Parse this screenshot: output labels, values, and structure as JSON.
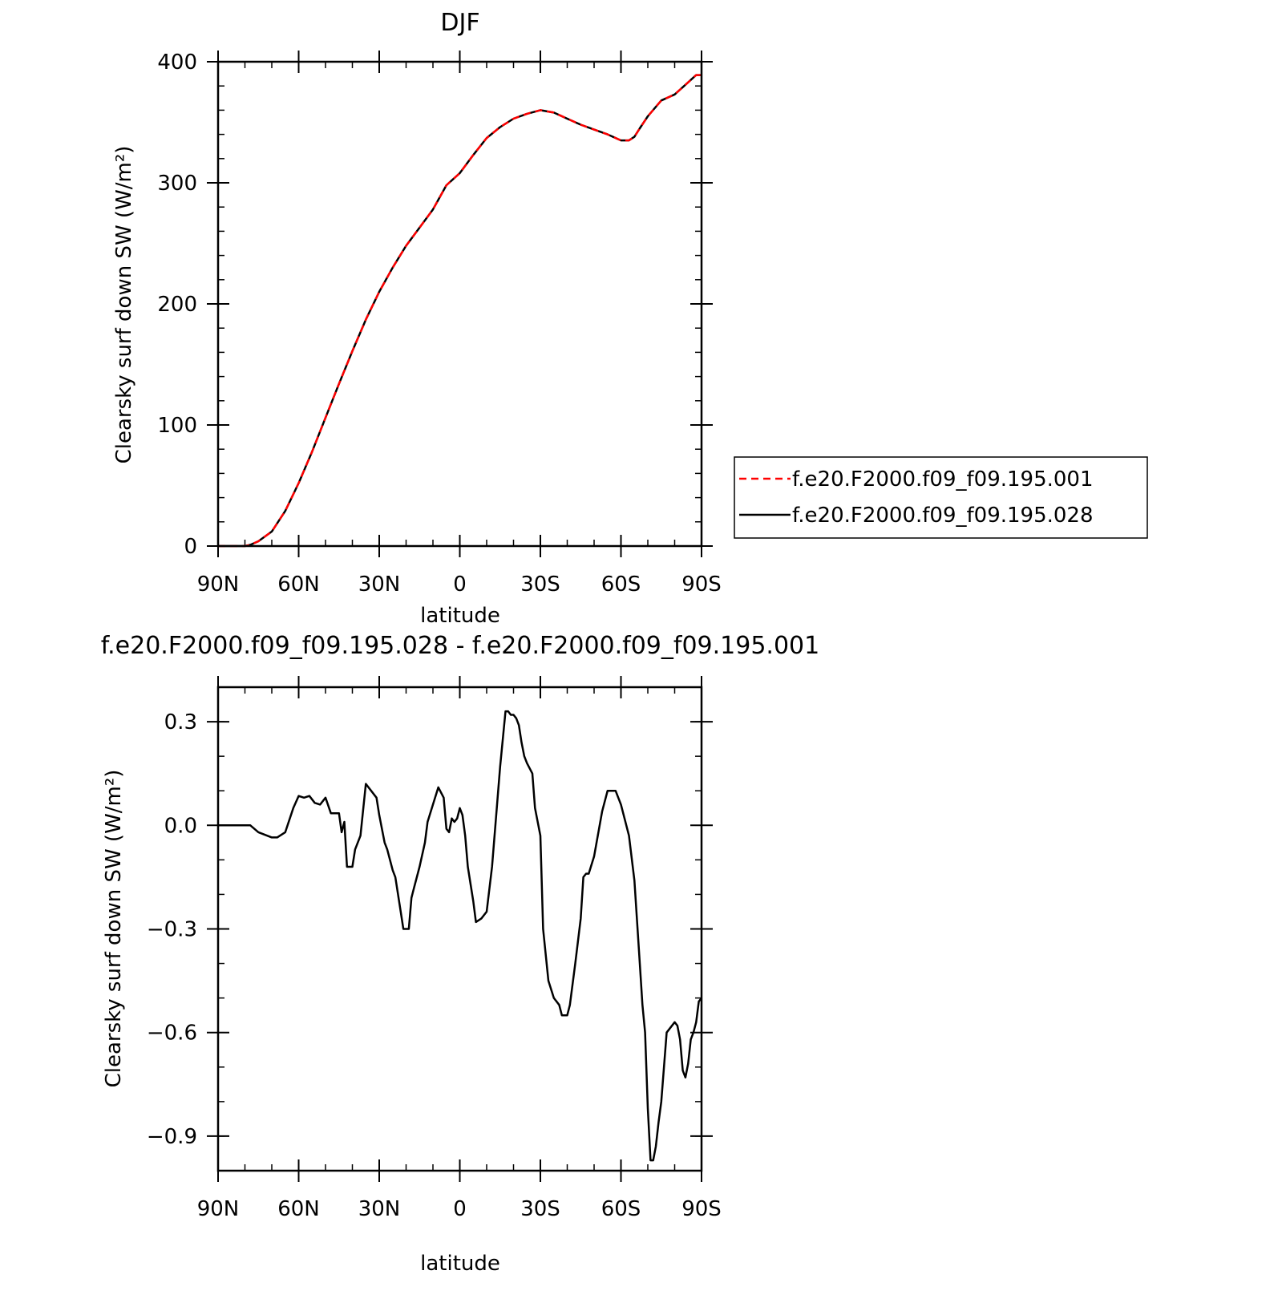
{
  "chart_data": [
    {
      "type": "line",
      "title": "DJF",
      "xlabel": "latitude",
      "ylabel": "Clearsky surf down SW (W/m²)",
      "xlim": [
        90,
        -90
      ],
      "ylim": [
        0,
        400
      ],
      "x_ticks": [
        {
          "value": 90,
          "label": "90N"
        },
        {
          "value": 60,
          "label": "60N"
        },
        {
          "value": 30,
          "label": "30N"
        },
        {
          "value": 0,
          "label": "0"
        },
        {
          "value": -30,
          "label": "30S"
        },
        {
          "value": -60,
          "label": "60S"
        },
        {
          "value": -90,
          "label": "90S"
        }
      ],
      "y_ticks": [
        {
          "value": 0,
          "label": "0"
        },
        {
          "value": 100,
          "label": "100"
        },
        {
          "value": 200,
          "label": "200"
        },
        {
          "value": 300,
          "label": "300"
        },
        {
          "value": 400,
          "label": "400"
        }
      ],
      "legend": {
        "placement": "right",
        "entries": [
          {
            "label": "f.e20.F2000.f09_f09.195.001",
            "color": "#ff0000",
            "dash": "dashed"
          },
          {
            "label": "f.e20.F2000.f09_f09.195.028",
            "color": "#000000",
            "dash": "solid"
          }
        ]
      },
      "series": [
        {
          "name": "f.e20.F2000.f09_f09.195.001",
          "color": "#ff0000",
          "dash": "dashed",
          "x": [
            90,
            85,
            80,
            78,
            75,
            70,
            65,
            60,
            55,
            50,
            45,
            40,
            35,
            30,
            25,
            20,
            15,
            10,
            5,
            0,
            -5,
            -10,
            -15,
            -20,
            -25,
            -30,
            -35,
            -40,
            -45,
            -50,
            -55,
            -60,
            -63,
            -65,
            -67,
            -70,
            -75,
            -80,
            -85,
            -88,
            -90
          ],
          "y": [
            0,
            0,
            0,
            1,
            4,
            12,
            29,
            52,
            78,
            106,
            134,
            161,
            187,
            210,
            230,
            248,
            263,
            278,
            298,
            308,
            323,
            337,
            346,
            353,
            357,
            360,
            358,
            353,
            348,
            344,
            340,
            335,
            335,
            338,
            345,
            355,
            368,
            373,
            383,
            389,
            389
          ]
        },
        {
          "name": "f.e20.F2000.f09_f09.195.028",
          "color": "#000000",
          "dash": "solid",
          "x": [
            90,
            85,
            80,
            78,
            75,
            70,
            65,
            60,
            55,
            50,
            45,
            40,
            35,
            30,
            25,
            20,
            15,
            10,
            5,
            0,
            -5,
            -10,
            -15,
            -20,
            -25,
            -30,
            -35,
            -40,
            -45,
            -50,
            -55,
            -60,
            -63,
            -65,
            -67,
            -70,
            -75,
            -80,
            -85,
            -88,
            -90
          ],
          "y": [
            0,
            0,
            0,
            1,
            4,
            12,
            29,
            52,
            78,
            106,
            134,
            161,
            187,
            210,
            230,
            248,
            263,
            278,
            298,
            308,
            323,
            337,
            346,
            353,
            357,
            360,
            358,
            353,
            348,
            344,
            340,
            335,
            335,
            338,
            345,
            355,
            368,
            373,
            383,
            389,
            389
          ]
        }
      ]
    },
    {
      "type": "line",
      "title": "f.e20.F2000.f09_f09.195.028 - f.e20.F2000.f09_f09.195.001",
      "xlabel": "latitude",
      "ylabel": "Clearsky surf down SW (W/m²)",
      "xlim": [
        90,
        -90
      ],
      "ylim": [
        -1.0,
        0.4
      ],
      "x_ticks": [
        {
          "value": 90,
          "label": "90N"
        },
        {
          "value": 60,
          "label": "60N"
        },
        {
          "value": 30,
          "label": "30N"
        },
        {
          "value": 0,
          "label": "0"
        },
        {
          "value": -30,
          "label": "30S"
        },
        {
          "value": -60,
          "label": "60S"
        },
        {
          "value": -90,
          "label": "90S"
        }
      ],
      "y_ticks": [
        {
          "value": 0.3,
          "label": "0.3"
        },
        {
          "value": 0.0,
          "label": "0.0"
        },
        {
          "value": -0.3,
          "label": "−0.3"
        },
        {
          "value": -0.6,
          "label": "−0.6"
        },
        {
          "value": -0.9,
          "label": "−0.9"
        }
      ],
      "series": [
        {
          "color": "#000000",
          "dash": "solid",
          "x": [
            90,
            78,
            75,
            70,
            68,
            65,
            62,
            60,
            58,
            56,
            54,
            52,
            50,
            48,
            45,
            44,
            43,
            42,
            40,
            39,
            37,
            35,
            31,
            30,
            28,
            27,
            25,
            24,
            22,
            21,
            19,
            18,
            17,
            15,
            13,
            12,
            10,
            8,
            6,
            5,
            4,
            3,
            2,
            1,
            0,
            -1,
            -2,
            -3,
            -5,
            -6,
            -8,
            -10,
            -12,
            -15,
            -17,
            -18,
            -19,
            -20,
            -21,
            -22,
            -23,
            -24,
            -25,
            -27,
            -28,
            -30,
            -31,
            -33,
            -35,
            -37,
            -38,
            -40,
            -41,
            -43,
            -45,
            -46,
            -47,
            -48,
            -50,
            -53,
            -55,
            -56,
            -57,
            -58,
            -60,
            -63,
            -65,
            -67,
            -68,
            -69,
            -70,
            -71,
            -72,
            -73,
            -74,
            -75,
            -77,
            -80,
            -81,
            -82,
            -83,
            -84,
            -85,
            -86,
            -87,
            -88,
            -89,
            -90
          ],
          "y": [
            0,
            0,
            -0.02,
            -0.035,
            -0.035,
            -0.02,
            0.05,
            0.085,
            0.08,
            0.085,
            0.065,
            0.06,
            0.08,
            0.035,
            0.035,
            -0.02,
            0.01,
            -0.12,
            -0.12,
            -0.07,
            -0.03,
            0.12,
            0.08,
            0.03,
            -0.05,
            -0.07,
            -0.13,
            -0.15,
            -0.25,
            -0.3,
            -0.3,
            -0.21,
            -0.18,
            -0.12,
            -0.05,
            0.01,
            0.06,
            0.11,
            0.08,
            -0.01,
            -0.02,
            0.02,
            0.01,
            0.02,
            0.05,
            0.03,
            -0.03,
            -0.12,
            -0.22,
            -0.28,
            -0.27,
            -0.25,
            -0.12,
            0.17,
            0.33,
            0.33,
            0.32,
            0.32,
            0.31,
            0.29,
            0.24,
            0.2,
            0.18,
            0.15,
            0.05,
            -0.03,
            -0.3,
            -0.45,
            -0.5,
            -0.52,
            -0.55,
            -0.55,
            -0.52,
            -0.4,
            -0.27,
            -0.15,
            -0.14,
            -0.14,
            -0.09,
            0.04,
            0.1,
            0.1,
            0.1,
            0.1,
            0.06,
            -0.03,
            -0.16,
            -0.4,
            -0.52,
            -0.6,
            -0.82,
            -0.97,
            -0.97,
            -0.93,
            -0.86,
            -0.8,
            -0.6,
            -0.57,
            -0.58,
            -0.62,
            -0.71,
            -0.73,
            -0.69,
            -0.62,
            -0.6,
            -0.57,
            -0.51,
            -0.5
          ]
        }
      ]
    }
  ]
}
